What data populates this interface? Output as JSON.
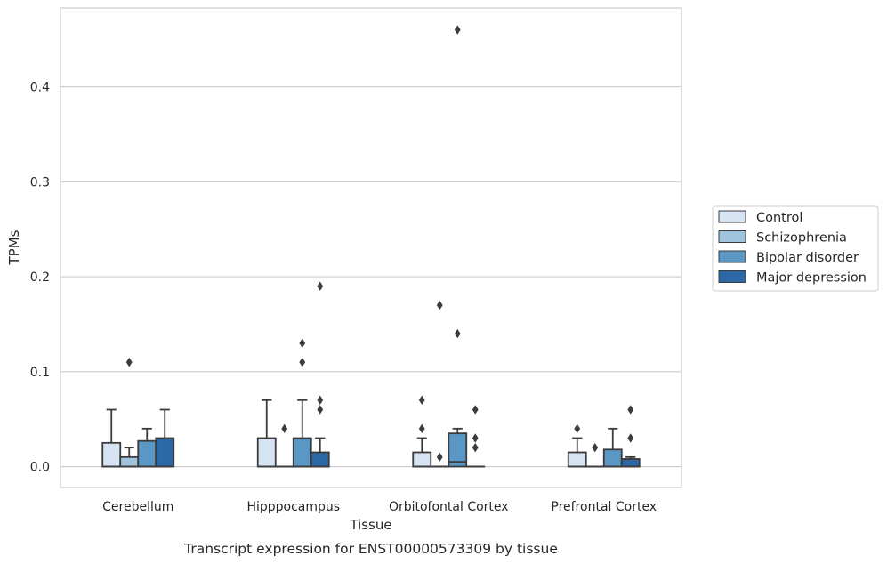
{
  "chart_data": {
    "type": "box",
    "caption": "Transcript expression for ENST00000573309 by tissue",
    "xlabel": "Tissue",
    "ylabel": "TPMs",
    "ylim": [
      -0.022,
      0.483
    ],
    "yticks": [
      0.0,
      0.1,
      0.2,
      0.3,
      0.4
    ],
    "ytick_labels": [
      "0.0",
      "0.1",
      "0.2",
      "0.3",
      "0.4"
    ],
    "grid": "horizontal",
    "legend_position": "right",
    "categories": [
      "Cerebellum",
      "Hipppocampus",
      "Orbitofontal Cortex",
      "Prefrontal Cortex"
    ],
    "series": [
      {
        "name": "Control",
        "color": "#d6e3f2",
        "boxes": [
          {
            "q1": 0.0,
            "median": 0.0,
            "q3": 0.025,
            "whisker_low": 0.0,
            "whisker_high": 0.06,
            "outliers": []
          },
          {
            "q1": 0.0,
            "median": 0.0,
            "q3": 0.03,
            "whisker_low": 0.0,
            "whisker_high": 0.07,
            "outliers": []
          },
          {
            "q1": 0.0,
            "median": 0.0,
            "q3": 0.015,
            "whisker_low": 0.0,
            "whisker_high": 0.03,
            "outliers": [
              0.04,
              0.07
            ]
          },
          {
            "q1": 0.0,
            "median": 0.0,
            "q3": 0.015,
            "whisker_low": 0.0,
            "whisker_high": 0.03,
            "outliers": [
              0.04
            ]
          }
        ]
      },
      {
        "name": "Schizophrenia",
        "color": "#a1c4de",
        "boxes": [
          {
            "q1": 0.0,
            "median": 0.0,
            "q3": 0.01,
            "whisker_low": 0.0,
            "whisker_high": 0.02,
            "outliers": [
              0.11
            ]
          },
          {
            "q1": 0.0,
            "median": 0.0,
            "q3": 0.0,
            "whisker_low": 0.0,
            "whisker_high": 0.0,
            "outliers": [
              0.04
            ]
          },
          {
            "q1": 0.0,
            "median": 0.0,
            "q3": 0.0,
            "whisker_low": 0.0,
            "whisker_high": 0.0,
            "outliers": [
              0.01,
              0.17
            ]
          },
          {
            "q1": 0.0,
            "median": 0.0,
            "q3": 0.0,
            "whisker_low": 0.0,
            "whisker_high": 0.0,
            "outliers": [
              0.02
            ]
          }
        ]
      },
      {
        "name": "Bipolar disorder",
        "color": "#5a97c4",
        "boxes": [
          {
            "q1": 0.0,
            "median": 0.0,
            "q3": 0.027,
            "whisker_low": 0.0,
            "whisker_high": 0.04,
            "outliers": []
          },
          {
            "q1": 0.0,
            "median": 0.0,
            "q3": 0.03,
            "whisker_low": 0.0,
            "whisker_high": 0.07,
            "outliers": [
              0.11,
              0.13
            ]
          },
          {
            "q1": 0.0,
            "median": 0.005,
            "q3": 0.035,
            "whisker_low": 0.0,
            "whisker_high": 0.04,
            "outliers": [
              0.14,
              0.46
            ]
          },
          {
            "q1": 0.0,
            "median": 0.0,
            "q3": 0.018,
            "whisker_low": 0.0,
            "whisker_high": 0.04,
            "outliers": []
          }
        ]
      },
      {
        "name": "Major depression",
        "color": "#2c68a5",
        "boxes": [
          {
            "q1": 0.0,
            "median": 0.0,
            "q3": 0.03,
            "whisker_low": 0.0,
            "whisker_high": 0.06,
            "outliers": []
          },
          {
            "q1": 0.0,
            "median": 0.0,
            "q3": 0.015,
            "whisker_low": 0.0,
            "whisker_high": 0.03,
            "outliers": [
              0.06,
              0.07,
              0.19
            ]
          },
          {
            "q1": 0.0,
            "median": 0.0,
            "q3": 0.0,
            "whisker_low": 0.0,
            "whisker_high": 0.0,
            "outliers": [
              0.02,
              0.03,
              0.06
            ]
          },
          {
            "q1": 0.0,
            "median": 0.0,
            "q3": 0.008,
            "whisker_low": 0.0,
            "whisker_high": 0.01,
            "outliers": [
              0.03,
              0.06
            ]
          }
        ]
      }
    ]
  }
}
